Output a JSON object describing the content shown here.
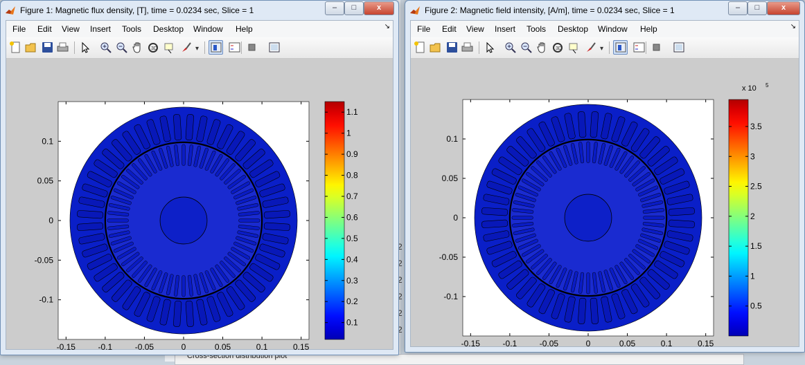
{
  "background": {
    "panel_title": "Cross-section distribution plot",
    "cells": [
      "2",
      "2",
      "2",
      "2",
      "2",
      "2"
    ]
  },
  "menu": [
    "File",
    "Edit",
    "View",
    "Insert",
    "Tools",
    "Desktop",
    "Window",
    "Help"
  ],
  "toolbar_icons": [
    "new-file-icon",
    "open-folder-icon",
    "save-icon",
    "print-icon",
    "select-arrow-icon",
    "zoom-in-icon",
    "zoom-out-icon",
    "pan-hand-icon",
    "rotate-3d-icon",
    "data-cursor-icon",
    "brush-icon",
    "link-plot-icon",
    "colorbar-icon",
    "legend-icon",
    "hide-plot-tools-icon",
    "show-plot-tools-icon"
  ],
  "window_buttons": {
    "minimize": "–",
    "maximize": "□",
    "close": "x"
  },
  "colors": {
    "plot_blue": "#0a1fc8",
    "jet_top": "#800000",
    "jet_bottom": "#00008f"
  },
  "figures": [
    {
      "title": "Figure 1: Magnetic flux density, [T], time = 0.0234 sec, Slice = 1",
      "chart_data": {
        "type": "heatmap",
        "quantity": "Magnetic flux density",
        "unit": "T",
        "xlim": [
          -0.16,
          0.16
        ],
        "ylim": [
          -0.15,
          0.15
        ],
        "xticks": [
          "-0.15",
          "-0.1",
          "-0.05",
          "0",
          "0.05",
          "0.1",
          "0.15"
        ],
        "yticks": [
          "0.1",
          "0.05",
          "0",
          "-0.05",
          "-0.1"
        ],
        "colorbar": {
          "min": 0.02,
          "max": 1.15,
          "ticks": [
            "1.1",
            "1",
            "0.9",
            "0.8",
            "0.7",
            "0.6",
            "0.5",
            "0.4",
            "0.3",
            "0.2",
            "0.1"
          ],
          "exponent": ""
        },
        "colormap": "jet",
        "stator_outer_radius": 0.145,
        "bore_radius": 0.1,
        "shaft_radius": 0.03,
        "stator_slots": 48,
        "rotor_bars": 60
      }
    },
    {
      "title": "Figure 2: Magnetic field intensity, [A/m], time = 0.0234 sec, Slice = 1",
      "chart_data": {
        "type": "heatmap",
        "quantity": "Magnetic field intensity",
        "unit": "A/m",
        "xlim": [
          -0.16,
          0.16
        ],
        "ylim": [
          -0.15,
          0.15
        ],
        "xticks": [
          "-0.15",
          "-0.1",
          "-0.05",
          "0",
          "0.05",
          "0.1",
          "0.15"
        ],
        "yticks": [
          "0.1",
          "0.05",
          "0",
          "-0.05",
          "-0.1"
        ],
        "colorbar": {
          "min": 0,
          "max": 3.95,
          "ticks": [
            "3.5",
            "3",
            "2.5",
            "2",
            "1.5",
            "1",
            "0.5"
          ],
          "exponent": "x 10",
          "exponent_power": "5"
        },
        "colormap": "jet",
        "stator_outer_radius": 0.145,
        "bore_radius": 0.1,
        "shaft_radius": 0.03,
        "stator_slots": 48,
        "rotor_bars": 60
      }
    }
  ]
}
